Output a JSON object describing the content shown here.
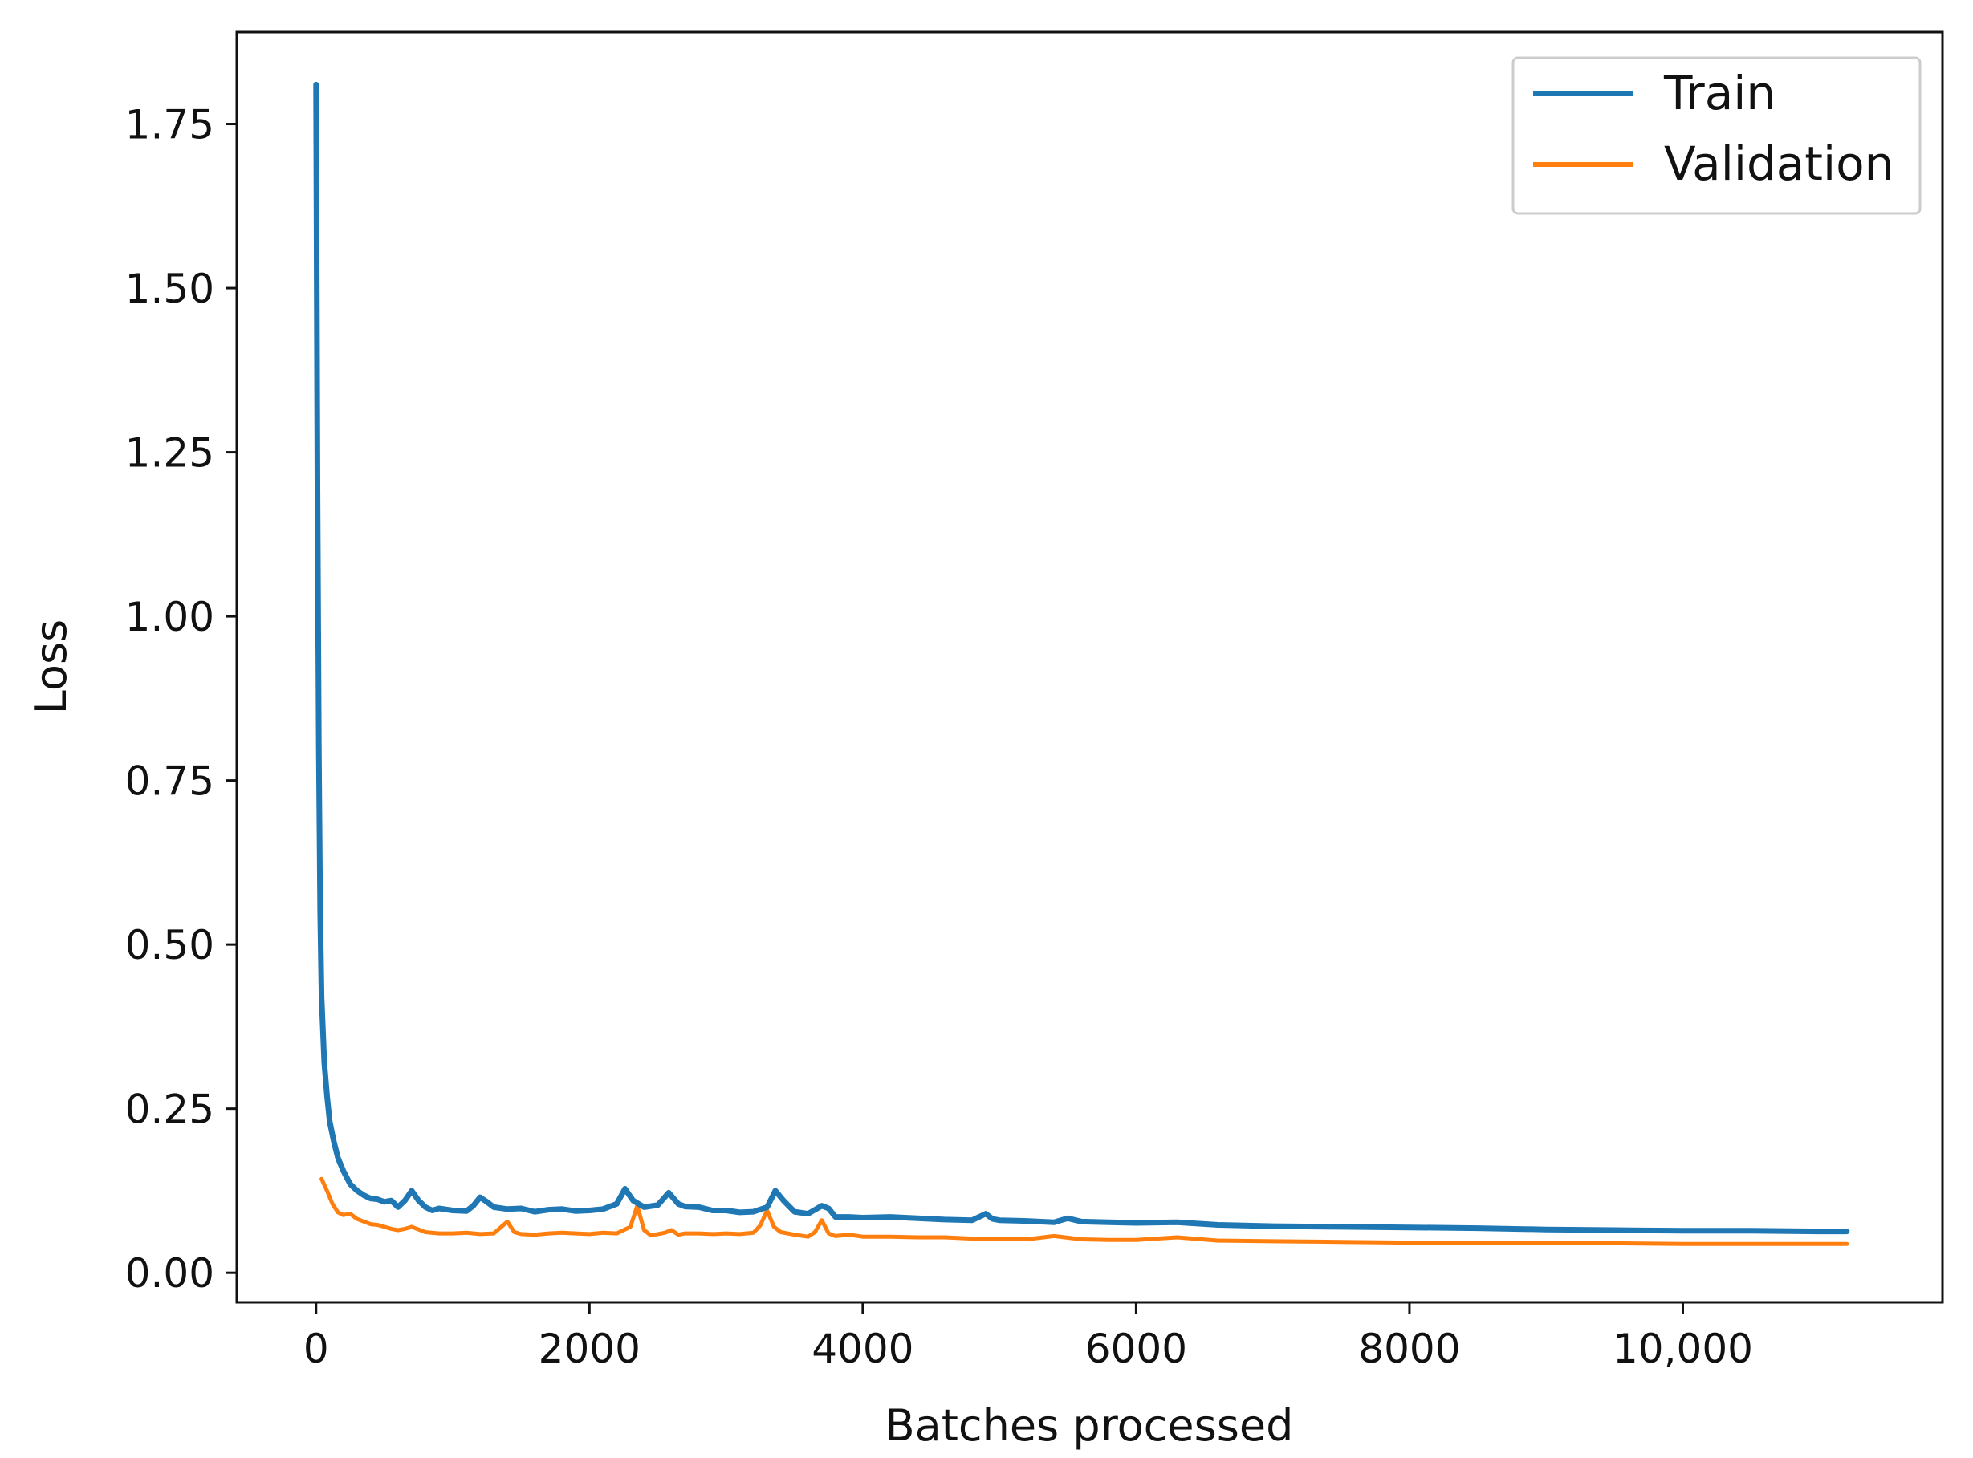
{
  "chart_data": {
    "type": "line",
    "xlabel": "Batches processed",
    "ylabel": "Loss",
    "xlim": [
      -580,
      11900
    ],
    "ylim": [
      -0.045,
      1.89
    ],
    "x_ticks": [
      {
        "value": 0,
        "label": "0"
      },
      {
        "value": 2000,
        "label": "2000"
      },
      {
        "value": 4000,
        "label": "4000"
      },
      {
        "value": 6000,
        "label": "6000"
      },
      {
        "value": 8000,
        "label": "8000"
      },
      {
        "value": 10000,
        "label": "10,000"
      }
    ],
    "y_ticks": [
      {
        "value": 0.0,
        "label": "0.00"
      },
      {
        "value": 0.25,
        "label": "0.25"
      },
      {
        "value": 0.5,
        "label": "0.50"
      },
      {
        "value": 0.75,
        "label": "0.75"
      },
      {
        "value": 1.0,
        "label": "1.00"
      },
      {
        "value": 1.25,
        "label": "1.25"
      },
      {
        "value": 1.5,
        "label": "1.50"
      },
      {
        "value": 1.75,
        "label": "1.75"
      }
    ],
    "grid": false,
    "legend_position": "top-right",
    "series": [
      {
        "name": "Train",
        "color": "#1f77b4",
        "points": [
          [
            0,
            1.81
          ],
          [
            10,
            1.2
          ],
          [
            20,
            0.8
          ],
          [
            30,
            0.55
          ],
          [
            40,
            0.42
          ],
          [
            60,
            0.32
          ],
          [
            80,
            0.27
          ],
          [
            100,
            0.23
          ],
          [
            130,
            0.2
          ],
          [
            160,
            0.175
          ],
          [
            200,
            0.155
          ],
          [
            250,
            0.135
          ],
          [
            300,
            0.125
          ],
          [
            350,
            0.118
          ],
          [
            400,
            0.113
          ],
          [
            450,
            0.112
          ],
          [
            500,
            0.108
          ],
          [
            550,
            0.11
          ],
          [
            600,
            0.1
          ],
          [
            650,
            0.11
          ],
          [
            700,
            0.125
          ],
          [
            750,
            0.11
          ],
          [
            800,
            0.1
          ],
          [
            850,
            0.095
          ],
          [
            900,
            0.098
          ],
          [
            1000,
            0.095
          ],
          [
            1100,
            0.094
          ],
          [
            1150,
            0.102
          ],
          [
            1200,
            0.115
          ],
          [
            1250,
            0.108
          ],
          [
            1300,
            0.1
          ],
          [
            1400,
            0.097
          ],
          [
            1500,
            0.098
          ],
          [
            1600,
            0.093
          ],
          [
            1700,
            0.096
          ],
          [
            1800,
            0.097
          ],
          [
            1900,
            0.094
          ],
          [
            2000,
            0.095
          ],
          [
            2100,
            0.097
          ],
          [
            2200,
            0.105
          ],
          [
            2260,
            0.128
          ],
          [
            2320,
            0.11
          ],
          [
            2400,
            0.1
          ],
          [
            2500,
            0.103
          ],
          [
            2580,
            0.122
          ],
          [
            2650,
            0.105
          ],
          [
            2700,
            0.101
          ],
          [
            2800,
            0.1
          ],
          [
            2900,
            0.095
          ],
          [
            3000,
            0.095
          ],
          [
            3100,
            0.092
          ],
          [
            3200,
            0.093
          ],
          [
            3300,
            0.1
          ],
          [
            3360,
            0.125
          ],
          [
            3420,
            0.11
          ],
          [
            3500,
            0.093
          ],
          [
            3600,
            0.09
          ],
          [
            3700,
            0.102
          ],
          [
            3750,
            0.098
          ],
          [
            3800,
            0.085
          ],
          [
            3900,
            0.085
          ],
          [
            4000,
            0.084
          ],
          [
            4200,
            0.085
          ],
          [
            4400,
            0.083
          ],
          [
            4600,
            0.081
          ],
          [
            4800,
            0.08
          ],
          [
            4900,
            0.09
          ],
          [
            4950,
            0.082
          ],
          [
            5000,
            0.08
          ],
          [
            5200,
            0.079
          ],
          [
            5400,
            0.077
          ],
          [
            5500,
            0.083
          ],
          [
            5600,
            0.078
          ],
          [
            5800,
            0.077
          ],
          [
            6000,
            0.076
          ],
          [
            6300,
            0.077
          ],
          [
            6600,
            0.073
          ],
          [
            7000,
            0.071
          ],
          [
            7500,
            0.07
          ],
          [
            8000,
            0.069
          ],
          [
            8500,
            0.068
          ],
          [
            9000,
            0.066
          ],
          [
            9500,
            0.065
          ],
          [
            10000,
            0.064
          ],
          [
            10500,
            0.064
          ],
          [
            11000,
            0.063
          ],
          [
            11200,
            0.063
          ]
        ]
      },
      {
        "name": "Validation",
        "color": "#ff7f0e",
        "points": [
          [
            40,
            0.143
          ],
          [
            80,
            0.125
          ],
          [
            120,
            0.105
          ],
          [
            160,
            0.092
          ],
          [
            200,
            0.088
          ],
          [
            250,
            0.09
          ],
          [
            300,
            0.082
          ],
          [
            350,
            0.078
          ],
          [
            400,
            0.074
          ],
          [
            450,
            0.073
          ],
          [
            500,
            0.07
          ],
          [
            550,
            0.067
          ],
          [
            600,
            0.065
          ],
          [
            650,
            0.067
          ],
          [
            700,
            0.07
          ],
          [
            750,
            0.066
          ],
          [
            800,
            0.062
          ],
          [
            900,
            0.06
          ],
          [
            1000,
            0.06
          ],
          [
            1100,
            0.061
          ],
          [
            1200,
            0.059
          ],
          [
            1300,
            0.06
          ],
          [
            1400,
            0.078
          ],
          [
            1450,
            0.062
          ],
          [
            1500,
            0.059
          ],
          [
            1600,
            0.058
          ],
          [
            1700,
            0.06
          ],
          [
            1800,
            0.061
          ],
          [
            1900,
            0.06
          ],
          [
            2000,
            0.059
          ],
          [
            2100,
            0.061
          ],
          [
            2200,
            0.06
          ],
          [
            2300,
            0.07
          ],
          [
            2350,
            0.102
          ],
          [
            2400,
            0.065
          ],
          [
            2450,
            0.057
          ],
          [
            2550,
            0.061
          ],
          [
            2600,
            0.065
          ],
          [
            2650,
            0.058
          ],
          [
            2700,
            0.06
          ],
          [
            2800,
            0.06
          ],
          [
            2900,
            0.059
          ],
          [
            3000,
            0.06
          ],
          [
            3100,
            0.059
          ],
          [
            3200,
            0.061
          ],
          [
            3250,
            0.072
          ],
          [
            3300,
            0.095
          ],
          [
            3350,
            0.07
          ],
          [
            3400,
            0.062
          ],
          [
            3500,
            0.058
          ],
          [
            3600,
            0.055
          ],
          [
            3650,
            0.062
          ],
          [
            3700,
            0.08
          ],
          [
            3750,
            0.06
          ],
          [
            3800,
            0.056
          ],
          [
            3900,
            0.058
          ],
          [
            4000,
            0.055
          ],
          [
            4200,
            0.055
          ],
          [
            4400,
            0.054
          ],
          [
            4600,
            0.054
          ],
          [
            4800,
            0.052
          ],
          [
            5000,
            0.052
          ],
          [
            5200,
            0.051
          ],
          [
            5400,
            0.056
          ],
          [
            5600,
            0.051
          ],
          [
            5800,
            0.05
          ],
          [
            6000,
            0.05
          ],
          [
            6300,
            0.054
          ],
          [
            6600,
            0.049
          ],
          [
            7000,
            0.048
          ],
          [
            7500,
            0.047
          ],
          [
            8000,
            0.046
          ],
          [
            8500,
            0.046
          ],
          [
            9000,
            0.045
          ],
          [
            9500,
            0.045
          ],
          [
            10000,
            0.044
          ],
          [
            10500,
            0.044
          ],
          [
            11000,
            0.044
          ],
          [
            11200,
            0.044
          ]
        ]
      }
    ]
  }
}
